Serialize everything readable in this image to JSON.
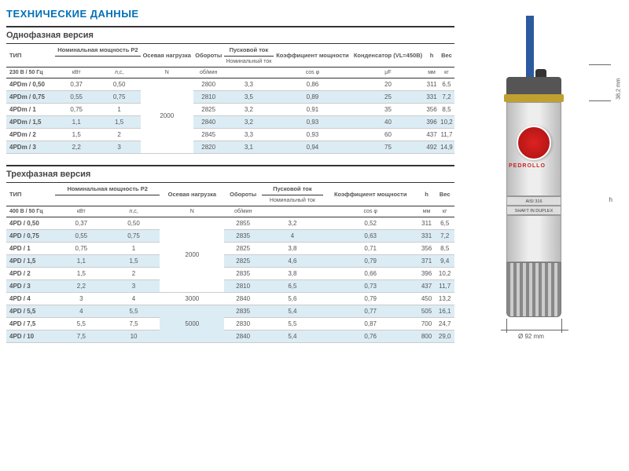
{
  "title": "ТЕХНИЧЕСКИЕ ДАННЫЕ",
  "t1": {
    "title": "Однофазная версия",
    "head": {
      "c0": "ТИП",
      "c1": "Номинальная мощность P2",
      "c2": "Осевая нагрузка",
      "c3": "Обороты",
      "c4": "Пусковой ток",
      "c4b": "Номинальный ток",
      "c5": "Коэффициент мощности",
      "c6": "Конденсатор (VL=450B)",
      "c7": "h",
      "c8": "Вес"
    },
    "volt": "230 В / 50 Гц",
    "units": {
      "u1": "кВт",
      "u2": "л,с,",
      "u3": "N",
      "u4": "об/мин",
      "u5": "cos φ",
      "u6": "μF",
      "u7": "мм",
      "u8": "кг"
    },
    "merged_load": "2000",
    "rows": [
      {
        "t": "4PDm / 0,50",
        "kw": "0,37",
        "hp": "0,50",
        "rpm": "2800",
        "ir": "3,3",
        "cos": "0,86",
        "cap": "20",
        "h": "311",
        "w": "6,5",
        "alt": false
      },
      {
        "t": "4PDm / 0,75",
        "kw": "0,55",
        "hp": "0,75",
        "rpm": "2810",
        "ir": "3,5",
        "cos": "0,89",
        "cap": "25",
        "h": "331",
        "w": "7,2",
        "alt": true
      },
      {
        "t": "4PDm / 1",
        "kw": "0,75",
        "hp": "1",
        "rpm": "2825",
        "ir": "3,2",
        "cos": "0,91",
        "cap": "35",
        "h": "356",
        "w": "8,5",
        "alt": false
      },
      {
        "t": "4PDm / 1,5",
        "kw": "1,1",
        "hp": "1,5",
        "rpm": "2840",
        "ir": "3,2",
        "cos": "0,93",
        "cap": "40",
        "h": "396",
        "w": "10,2",
        "alt": true
      },
      {
        "t": "4PDm / 2",
        "kw": "1,5",
        "hp": "2",
        "rpm": "2845",
        "ir": "3,3",
        "cos": "0,93",
        "cap": "60",
        "h": "437",
        "w": "11,7",
        "alt": false
      },
      {
        "t": "4PDm / 3",
        "kw": "2,2",
        "hp": "3",
        "rpm": "2820",
        "ir": "3,1",
        "cos": "0,94",
        "cap": "75",
        "h": "492",
        "w": "14,9",
        "alt": true
      }
    ]
  },
  "t2": {
    "title": "Трехфазная версия",
    "head": {
      "c0": "ТИП",
      "c1": "Номинальная мощность P2",
      "c2": "Осевая нагрузка",
      "c3": "Обороты",
      "c4": "Пусковой ток",
      "c4b": "Номинальный ток",
      "c5": "Коэффициент мощности",
      "c7": "h",
      "c8": "Вес"
    },
    "volt": "400 В / 50 Гц",
    "units": {
      "u1": "кВт",
      "u2": "л,с,",
      "u3": "N",
      "u4": "об/мин",
      "u5": "cos φ",
      "u7": "мм",
      "u8": "кг"
    },
    "loads": [
      "2000",
      "3000",
      "5000"
    ],
    "rows": [
      {
        "t": "4PD / 0,50",
        "kw": "0,37",
        "hp": "0,50",
        "rpm": "2855",
        "ir": "3,2",
        "cos": "0,52",
        "h": "311",
        "w": "6,5",
        "alt": false
      },
      {
        "t": "4PD / 0,75",
        "kw": "0,55",
        "hp": "0,75",
        "rpm": "2835",
        "ir": "4",
        "cos": "0,63",
        "h": "331",
        "w": "7,2",
        "alt": true
      },
      {
        "t": "4PD / 1",
        "kw": "0,75",
        "hp": "1",
        "rpm": "2825",
        "ir": "3,8",
        "cos": "0,71",
        "h": "356",
        "w": "8,5",
        "alt": false
      },
      {
        "t": "4PD / 1,5",
        "kw": "1,1",
        "hp": "1,5",
        "rpm": "2825",
        "ir": "4,6",
        "cos": "0,79",
        "h": "371",
        "w": "9,4",
        "alt": true
      },
      {
        "t": "4PD / 2",
        "kw": "1,5",
        "hp": "2",
        "rpm": "2835",
        "ir": "3,8",
        "cos": "0,66",
        "h": "396",
        "w": "10,2",
        "alt": false
      },
      {
        "t": "4PD / 3",
        "kw": "2,2",
        "hp": "3",
        "rpm": "2810",
        "ir": "6,5",
        "cos": "0,73",
        "h": "437",
        "w": "11,7",
        "alt": true
      },
      {
        "t": "4PD / 4",
        "kw": "3",
        "hp": "4",
        "rpm": "2840",
        "ir": "5,6",
        "cos": "0,79",
        "h": "450",
        "w": "13,2",
        "alt": false
      },
      {
        "t": "4PD / 5,5",
        "kw": "4",
        "hp": "5,5",
        "rpm": "2835",
        "ir": "5,4",
        "cos": "0,77",
        "h": "505",
        "w": "16,1",
        "alt": true
      },
      {
        "t": "4PD / 7,5",
        "kw": "5,5",
        "hp": "7,5",
        "rpm": "2830",
        "ir": "5,5",
        "cos": "0,87",
        "h": "700",
        "w": "24,7",
        "alt": false
      },
      {
        "t": "4PD / 10",
        "kw": "7,5",
        "hp": "10",
        "rpm": "2840",
        "ir": "5,4",
        "cos": "0,76",
        "h": "800",
        "w": "29,0",
        "alt": true
      }
    ]
  },
  "pump": {
    "brand": "PEDROLLO",
    "band1": "AISI 316",
    "band2": "SHAFT IN DUPLEX",
    "dim_top": "38,2 mm",
    "dim_h": "h",
    "dim_bot": "Ø 92 mm"
  },
  "colors": {
    "accent": "#0070b8",
    "alt_row": "#dcecf4",
    "border": "#333",
    "text": "#555"
  }
}
